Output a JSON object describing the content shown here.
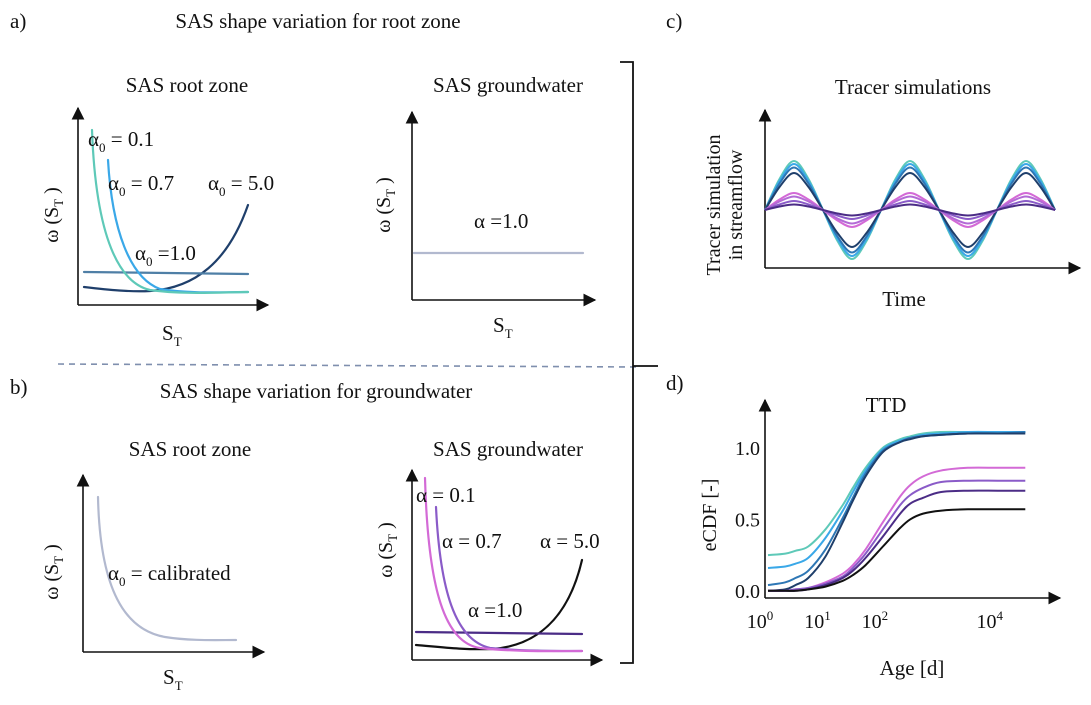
{
  "panel_a": {
    "letter": "a)",
    "title": "SAS shape variation for root zone",
    "root": {
      "title": "SAS root zone",
      "ylabel_main": "ω (S",
      "ylabel_sub": "T",
      "ylabel_end": " )",
      "xlabel_main": "S",
      "xlabel_sub": "T",
      "label_01_a": "α",
      "label_01_sub": "0",
      "label_01_b": " = 0.1",
      "label_07_a": "α",
      "label_07_sub": "0",
      "label_07_b": " = 0.7",
      "label_50_a": "α",
      "label_50_sub": "0",
      "label_50_b": " = 5.0",
      "label_10_a": "α",
      "label_10_sub": "0",
      "label_10_b": " =1.0"
    },
    "gw": {
      "title": "SAS groundwater",
      "ylabel_main": "ω (S",
      "ylabel_sub": "T",
      "ylabel_end": " )",
      "xlabel_main": "S",
      "xlabel_sub": "T",
      "label_alpha": "α =1.0"
    }
  },
  "panel_b": {
    "letter": "b)",
    "title": "SAS shape variation for groundwater",
    "root": {
      "title": "SAS root zone",
      "ylabel_main": "ω (S",
      "ylabel_sub": "T",
      "ylabel_end": " )",
      "xlabel_main": "S",
      "xlabel_sub": "T",
      "label_a": "α",
      "label_sub": "0",
      "label_b": " = calibrated"
    },
    "gw": {
      "title": "SAS groundwater",
      "ylabel_main": "ω (S",
      "ylabel_sub": "T",
      "ylabel_end": " )",
      "label_01": "α = 0.1",
      "label_07": "α = 0.7",
      "label_50": "α = 5.0",
      "label_10": "α =1.0"
    }
  },
  "panel_c": {
    "letter": "c)",
    "title": "Tracer simulations",
    "ylabel_line1": "Tracer simulation",
    "ylabel_line2": "in streamflow",
    "xlabel": "Time"
  },
  "panel_d": {
    "letter": "d)",
    "title": "TTD",
    "ylabel": "eCDF [-]",
    "xlabel": "Age [d]",
    "ytick_labels": [
      "0.0",
      "0.5",
      "1.0"
    ],
    "xtick_base": [
      "10",
      "10",
      "10",
      "10"
    ],
    "xtick_exp": [
      "0",
      "1",
      "2",
      "4"
    ]
  },
  "colors": {
    "teal": "#5ec9b8",
    "sky": "#3aa8e8",
    "steel": "#2e77b5",
    "slate": "#4f7fa6",
    "navy": "#1f3f6b",
    "lavender": "#b2b9cf",
    "pink": "#d36ad6",
    "purple": "#8a5bc8",
    "indigo": "#4b2c86",
    "black": "#111111",
    "dash": "#7f8fae"
  },
  "chart_data": [
    {
      "type": "line",
      "title": "Tracer simulations",
      "xlabel": "Time",
      "ylabel": "Tracer simulation in streamflow",
      "grid": false,
      "x": [
        0,
        0.5,
        1,
        1.5,
        2,
        2.5,
        3,
        3.5,
        4,
        4.5,
        5,
        5.5,
        6,
        6.5,
        7,
        7.5,
        8,
        8.5,
        9,
        9.5,
        10
      ],
      "series": [
        {
          "values": [
            0.0,
            0.62,
            0.98,
            0.62,
            0.0,
            -0.62,
            -0.98,
            -0.62,
            0.0,
            0.62,
            0.98,
            0.62,
            0.0,
            -0.62,
            -0.98,
            -0.62,
            0.0,
            0.62,
            0.98,
            0.62,
            0.0
          ]
        },
        {
          "values": [
            0.0,
            0.58,
            0.92,
            0.58,
            0.0,
            -0.58,
            -0.92,
            -0.58,
            0.0,
            0.58,
            0.92,
            0.58,
            0.0,
            -0.58,
            -0.92,
            -0.58,
            0.0,
            0.58,
            0.92,
            0.58,
            0.0
          ]
        },
        {
          "values": [
            0.0,
            0.53,
            0.85,
            0.53,
            0.0,
            -0.53,
            -0.85,
            -0.53,
            0.0,
            0.53,
            0.85,
            0.53,
            0.0,
            -0.53,
            -0.85,
            -0.53,
            0.0,
            0.53,
            0.85,
            0.53,
            0.0
          ]
        },
        {
          "values": [
            0.0,
            0.46,
            0.74,
            0.46,
            0.0,
            -0.46,
            -0.74,
            -0.46,
            0.0,
            0.46,
            0.74,
            0.46,
            0.0,
            -0.46,
            -0.74,
            -0.46,
            0.0,
            0.46,
            0.74,
            0.46,
            0.0
          ]
        },
        {
          "values": [
            0.0,
            0.21,
            0.34,
            0.21,
            0.0,
            -0.21,
            -0.34,
            -0.21,
            0.0,
            0.21,
            0.34,
            0.21,
            0.0,
            -0.21,
            -0.34,
            -0.21,
            0.0,
            0.21,
            0.34,
            0.21,
            0.0
          ]
        },
        {
          "values": [
            0.0,
            0.17,
            0.27,
            0.17,
            0.0,
            -0.17,
            -0.27,
            -0.17,
            0.0,
            0.17,
            0.27,
            0.17,
            0.0,
            -0.17,
            -0.27,
            -0.17,
            0.0,
            0.17,
            0.27,
            0.17,
            0.0
          ]
        },
        {
          "values": [
            0.0,
            0.11,
            0.18,
            0.11,
            0.0,
            -0.11,
            -0.18,
            -0.11,
            0.0,
            0.11,
            0.18,
            0.11,
            0.0,
            -0.11,
            -0.18,
            -0.11,
            0.0,
            0.11,
            0.18,
            0.11,
            0.0
          ]
        },
        {
          "values": [
            0.0,
            0.07,
            0.11,
            0.07,
            0.0,
            -0.07,
            -0.11,
            -0.07,
            0.0,
            0.07,
            0.11,
            0.07,
            0.0,
            -0.07,
            -0.11,
            -0.07,
            0.0,
            0.07,
            0.11,
            0.07,
            0.0
          ]
        }
      ],
      "series_colors": [
        "#5ec9b8",
        "#3aa8e8",
        "#2e77b5",
        "#1f3f6b",
        "#d36ad6",
        "#b36ad6",
        "#8a5bc8",
        "#4b2c86"
      ]
    },
    {
      "type": "line",
      "title": "TTD",
      "xlabel": "Age [d]",
      "ylabel": "eCDF [-]",
      "x_scale": "log",
      "xlim": [
        1,
        50000
      ],
      "ylim": [
        -0.05,
        1.25
      ],
      "grid": false,
      "x": [
        1,
        2,
        3,
        5,
        10,
        20,
        30,
        50,
        100,
        200,
        300,
        500,
        1000,
        3000,
        10000,
        30000
      ],
      "series": [
        {
          "values": [
            0.25,
            0.26,
            0.28,
            0.31,
            0.43,
            0.6,
            0.72,
            0.86,
            1.0,
            1.06,
            1.08,
            1.1,
            1.11,
            1.11,
            1.11,
            1.11
          ]
        },
        {
          "values": [
            0.16,
            0.17,
            0.19,
            0.23,
            0.37,
            0.56,
            0.69,
            0.84,
            0.99,
            1.05,
            1.07,
            1.09,
            1.1,
            1.11,
            1.11,
            1.11
          ]
        },
        {
          "values": [
            0.04,
            0.06,
            0.09,
            0.14,
            0.29,
            0.51,
            0.65,
            0.82,
            0.98,
            1.04,
            1.07,
            1.08,
            1.09,
            1.1,
            1.1,
            1.11
          ]
        },
        {
          "values": [
            0.0,
            0.01,
            0.04,
            0.09,
            0.24,
            0.48,
            0.63,
            0.8,
            0.97,
            1.04,
            1.06,
            1.08,
            1.09,
            1.1,
            1.1,
            1.1
          ]
        },
        {
          "values": [
            0.0,
            0.0,
            0.01,
            0.02,
            0.06,
            0.12,
            0.18,
            0.29,
            0.48,
            0.66,
            0.74,
            0.8,
            0.84,
            0.86,
            0.86,
            0.86
          ]
        },
        {
          "values": [
            0.0,
            0.0,
            0.01,
            0.02,
            0.05,
            0.1,
            0.16,
            0.26,
            0.43,
            0.6,
            0.67,
            0.72,
            0.76,
            0.77,
            0.77,
            0.77
          ]
        },
        {
          "values": [
            0.0,
            0.0,
            0.0,
            0.01,
            0.04,
            0.09,
            0.14,
            0.23,
            0.38,
            0.54,
            0.61,
            0.65,
            0.69,
            0.7,
            0.7,
            0.7
          ]
        },
        {
          "values": [
            0.0,
            0.0,
            0.0,
            0.01,
            0.03,
            0.07,
            0.11,
            0.18,
            0.31,
            0.44,
            0.5,
            0.54,
            0.56,
            0.57,
            0.57,
            0.57
          ]
        }
      ],
      "series_colors": [
        "#5ec9b8",
        "#3aa8e8",
        "#2e77b5",
        "#1f3f6b",
        "#d36ad6",
        "#8a5bc8",
        "#4b2c86",
        "#111111"
      ],
      "ytick_values": [
        0.0,
        0.5,
        1.0
      ],
      "xtick_values": [
        1,
        10,
        100,
        10000
      ]
    }
  ]
}
